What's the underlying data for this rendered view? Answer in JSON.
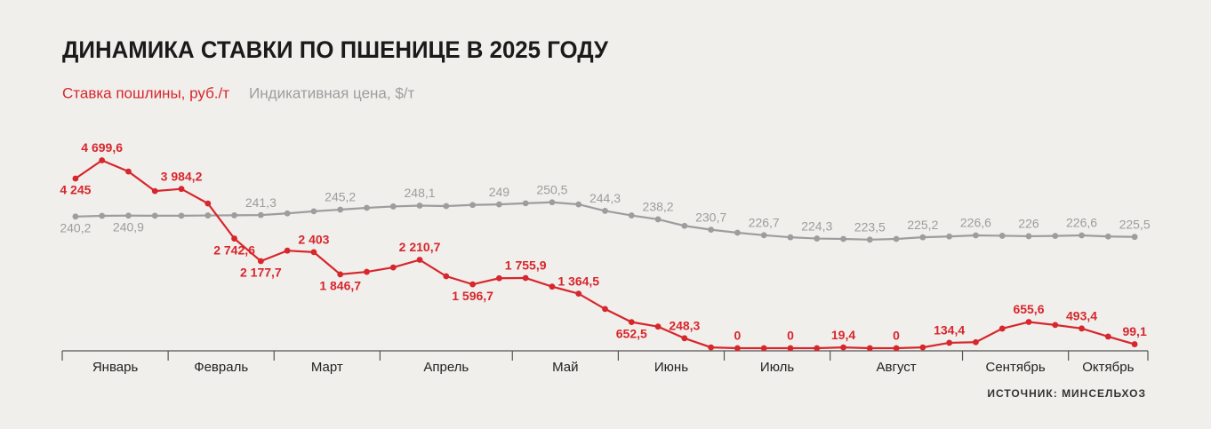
{
  "chart_data": {
    "type": "line",
    "title": "ДИНАМИКА СТАВКИ ПО ПШЕНИЦЕ В 2025 ГОДУ",
    "source": "ИСТОЧНИК: МИНСЕЛЬХОЗ",
    "categories": [
      "Январь",
      null,
      null,
      null,
      "Февраль",
      null,
      null,
      null,
      "Март",
      null,
      null,
      null,
      "Апрель",
      null,
      null,
      null,
      null,
      "Май",
      null,
      null,
      null,
      "Июнь",
      null,
      null,
      null,
      "Июль",
      null,
      null,
      null,
      "Август",
      null,
      null,
      null,
      null,
      "Сентябрь",
      null,
      null,
      null,
      "Октябрь",
      null,
      null
    ],
    "ylim": [
      0,
      5500
    ],
    "y2lim": [
      145,
      304
    ],
    "grid": false,
    "series": [
      {
        "name": "Ставка пошлины, руб./т",
        "color": "#d7262c",
        "axis": "y",
        "values": [
          4245,
          4699.6,
          4420,
          3930,
          3984.2,
          3620,
          2742.6,
          2177.7,
          2440,
          2403,
          1846.7,
          1910,
          2020,
          2210.7,
          1800,
          1596.7,
          1750,
          1755.9,
          1540,
          1364.5,
          980,
          652.5,
          540,
          248.3,
          20,
          0,
          0,
          0,
          0,
          19.4,
          0,
          0,
          20,
          134.4,
          150,
          490,
          655.6,
          580,
          493.4,
          290,
          99.1
        ],
        "value_labels": [
          "4 245",
          "4 699,6",
          null,
          null,
          "3 984,2",
          null,
          "2 742,6",
          "2 177,7",
          null,
          "2 403",
          "1 846,7",
          null,
          null,
          "2 210,7",
          null,
          "1 596,7",
          null,
          "1 755,9",
          null,
          "1 364,5",
          null,
          "652,5",
          null,
          "248,3",
          null,
          "0",
          null,
          "0",
          null,
          "19,4",
          null,
          "0",
          null,
          "134,4",
          null,
          null,
          "655,6",
          null,
          "493,4",
          null,
          "99,1"
        ]
      },
      {
        "name": "Индикативная цена, $/т",
        "color": "#9d9d9d",
        "axis": "y2",
        "values": [
          240.2,
          240.7,
          240.9,
          240.8,
          240.8,
          241.0,
          241.1,
          241.3,
          242.5,
          244.0,
          245.2,
          246.5,
          247.5,
          248.1,
          247.8,
          248.6,
          249,
          249.8,
          250.5,
          249.0,
          244.3,
          241.0,
          238.2,
          233.5,
          230.7,
          228.5,
          226.7,
          225.2,
          224.3,
          224.0,
          223.5,
          224.0,
          225.2,
          225.8,
          226.6,
          226.3,
          226,
          226.2,
          226.6,
          225.8,
          225.5
        ],
        "value_labels": [
          "240,2",
          null,
          "240,9",
          null,
          null,
          null,
          null,
          "241,3",
          null,
          null,
          "245,2",
          null,
          null,
          "248,1",
          null,
          null,
          "249",
          null,
          "250,5",
          null,
          "244,3",
          null,
          "238,2",
          null,
          "230,7",
          null,
          "226,7",
          null,
          "224,3",
          null,
          "223,5",
          null,
          "225,2",
          null,
          "226,6",
          null,
          "226",
          null,
          "226,6",
          null,
          "225,5"
        ]
      }
    ]
  }
}
